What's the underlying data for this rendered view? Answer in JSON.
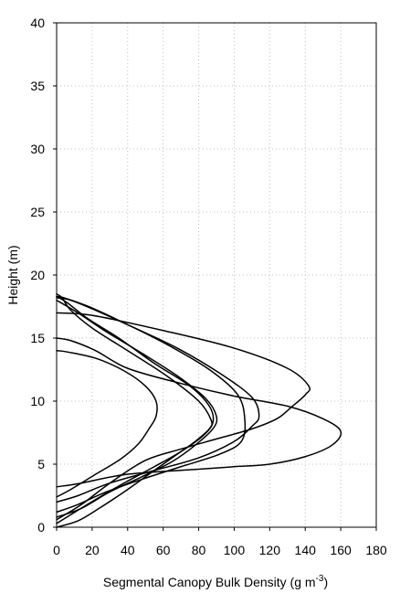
{
  "chart_data": {
    "type": "line",
    "title": "",
    "xlabel": "Segmental Canopy Bulk Density (g m",
    "xlabel_superscript": "-3",
    "xlabel_suffix": ")",
    "ylabel": "Height (m)",
    "xlim": [
      0,
      180
    ],
    "ylim": [
      0,
      40
    ],
    "xticks": [
      "0",
      "20",
      "40",
      "60",
      "80",
      "100",
      "120",
      "140",
      "160",
      "180"
    ],
    "yticks": [
      "0",
      "5",
      "10",
      "15",
      "20",
      "25",
      "30",
      "35",
      "40"
    ],
    "grid": true,
    "legend": "none",
    "colors": {
      "line": "#000000",
      "grid": "#bfbfbf",
      "axis": "#000000",
      "background": "#ffffff"
    },
    "series": [
      {
        "points": [
          [
            0,
            0
          ],
          [
            12,
            0.5
          ],
          [
            24,
            1.5
          ],
          [
            38,
            2.8
          ],
          [
            52,
            4.2
          ],
          [
            66,
            5.6
          ],
          [
            78,
            6.8
          ],
          [
            86,
            7.8
          ],
          [
            87,
            8.5
          ],
          [
            80,
            10
          ],
          [
            62,
            12
          ],
          [
            40,
            14
          ],
          [
            20,
            15.8
          ],
          [
            8,
            17.2
          ],
          [
            3,
            18.2
          ],
          [
            0,
            18.5
          ]
        ]
      },
      {
        "points": [
          [
            0,
            0.3
          ],
          [
            8,
            1.0
          ],
          [
            22,
            2.2
          ],
          [
            38,
            3.5
          ],
          [
            55,
            4.8
          ],
          [
            70,
            6.0
          ],
          [
            82,
            7.2
          ],
          [
            88,
            8.3
          ],
          [
            86,
            9.6
          ],
          [
            75,
            11.2
          ],
          [
            55,
            13.0
          ],
          [
            35,
            15.0
          ],
          [
            18,
            16.5
          ],
          [
            6,
            17.8
          ],
          [
            0,
            18.3
          ]
        ]
      },
      {
        "points": [
          [
            0,
            0.8
          ],
          [
            14,
            1.5
          ],
          [
            30,
            2.8
          ],
          [
            48,
            4.0
          ],
          [
            65,
            5.2
          ],
          [
            78,
            6.5
          ],
          [
            88,
            7.8
          ],
          [
            90,
            8.8
          ],
          [
            84,
            10.2
          ],
          [
            68,
            12.0
          ],
          [
            48,
            13.8
          ],
          [
            28,
            15.5
          ],
          [
            12,
            17.0
          ],
          [
            0,
            18.0
          ]
        ]
      },
      {
        "points": [
          [
            0,
            1.2
          ],
          [
            12,
            1.8
          ],
          [
            28,
            2.8
          ],
          [
            48,
            3.8
          ],
          [
            70,
            4.8
          ],
          [
            92,
            5.8
          ],
          [
            104,
            6.8
          ],
          [
            106,
            8.5
          ],
          [
            102,
            10.5
          ],
          [
            86,
            12.5
          ],
          [
            62,
            14.5
          ],
          [
            38,
            16.2
          ],
          [
            18,
            17.5
          ],
          [
            4,
            18.2
          ],
          [
            0,
            18.3
          ]
        ]
      },
      {
        "points": [
          [
            0,
            2.0
          ],
          [
            12,
            2.5
          ],
          [
            30,
            3.5
          ],
          [
            55,
            4.5
          ],
          [
            80,
            5.5
          ],
          [
            100,
            6.8
          ],
          [
            110,
            8.0
          ],
          [
            114,
            8.8
          ],
          [
            110,
            10.3
          ],
          [
            92,
            12.2
          ],
          [
            68,
            14.2
          ],
          [
            44,
            15.8
          ],
          [
            22,
            17.2
          ],
          [
            8,
            18.0
          ],
          [
            0,
            18.2
          ]
        ]
      },
      {
        "points": [
          [
            0,
            2.4
          ],
          [
            8,
            3.0
          ],
          [
            22,
            4.2
          ],
          [
            36,
            5.4
          ],
          [
            46,
            6.6
          ],
          [
            52,
            7.8
          ],
          [
            56,
            8.8
          ],
          [
            56,
            10.0
          ],
          [
            50,
            11.2
          ],
          [
            38,
            12.4
          ],
          [
            22,
            13.4
          ],
          [
            6,
            13.9
          ],
          [
            0,
            14.0
          ]
        ]
      },
      {
        "points": [
          [
            0,
            3.2
          ],
          [
            14,
            3.5
          ],
          [
            40,
            4.2
          ],
          [
            80,
            4.6
          ],
          [
            100,
            4.8
          ],
          [
            120,
            5.0
          ],
          [
            140,
            5.6
          ],
          [
            155,
            6.5
          ],
          [
            160,
            7.6
          ],
          [
            150,
            8.6
          ],
          [
            130,
            9.6
          ],
          [
            100,
            10.4
          ],
          [
            70,
            11.4
          ],
          [
            40,
            12.6
          ],
          [
            22,
            14.0
          ],
          [
            8,
            14.8
          ],
          [
            0,
            15.0
          ]
        ]
      },
      {
        "points": [
          [
            0,
            0.6
          ],
          [
            14,
            1.8
          ],
          [
            30,
            3.5
          ],
          [
            50,
            5.3
          ],
          [
            70,
            6.2
          ],
          [
            90,
            7.0
          ],
          [
            110,
            7.8
          ],
          [
            124,
            8.6
          ],
          [
            132,
            9.5
          ],
          [
            140,
            10.5
          ],
          [
            142,
            11.2
          ],
          [
            130,
            12.6
          ],
          [
            100,
            14.2
          ],
          [
            60,
            15.6
          ],
          [
            20,
            16.8
          ],
          [
            0,
            17.0
          ]
        ]
      }
    ]
  }
}
